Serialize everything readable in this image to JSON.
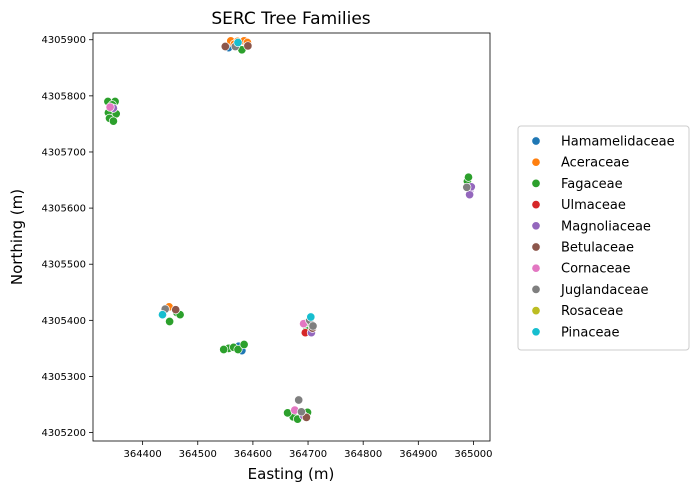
{
  "chart_data": {
    "type": "scatter",
    "title": "SERC Tree Families",
    "xlabel": "Easting (m)",
    "ylabel": "Northing (m)",
    "xlim": [
      364310,
      365030
    ],
    "ylim": [
      4305185,
      4305912
    ],
    "xticks": [
      {
        "value": 364400,
        "label": "364400"
      },
      {
        "value": 364500,
        "label": "364500"
      },
      {
        "value": 364600,
        "label": "364600"
      },
      {
        "value": 364700,
        "label": "364700"
      },
      {
        "value": 364800,
        "label": "364800"
      },
      {
        "value": 364900,
        "label": "364900"
      },
      {
        "value": 365000,
        "label": "365000"
      }
    ],
    "yticks": [
      {
        "value": 4305200,
        "label": "4305200"
      },
      {
        "value": 4305300,
        "label": "4305300"
      },
      {
        "value": 4305400,
        "label": "4305400"
      },
      {
        "value": 4305500,
        "label": "4305500"
      },
      {
        "value": 4305600,
        "label": "4305600"
      },
      {
        "value": 4305700,
        "label": "4305700"
      },
      {
        "value": 4305800,
        "label": "4305800"
      },
      {
        "value": 4305900,
        "label": "4305900"
      }
    ],
    "grid": false,
    "legend_position": "right",
    "series": [
      {
        "name": "Hamamelidaceae",
        "color": "#1f77b4",
        "points": [
          [
            364556,
            4305886
          ],
          [
            364580,
            4305346
          ],
          [
            364574,
            4305354
          ]
        ]
      },
      {
        "name": "Aceraceae",
        "color": "#ff7f0e",
        "points": [
          [
            364560,
            4305898
          ],
          [
            364572,
            4305897
          ],
          [
            364584,
            4305898
          ],
          [
            364566,
            4305892
          ],
          [
            364590,
            4305895
          ],
          [
            364448,
            4305424
          ]
        ]
      },
      {
        "name": "Fagaceae",
        "color": "#2ca02c",
        "points": [
          [
            364580,
            4305882
          ],
          [
            364337,
            4305790
          ],
          [
            364350,
            4305790
          ],
          [
            364345,
            4305784
          ],
          [
            364338,
            4305770
          ],
          [
            364352,
            4305768
          ],
          [
            364340,
            4305760
          ],
          [
            364347,
            4305755
          ],
          [
            364449,
            4305398
          ],
          [
            364462,
            4305414
          ],
          [
            364468,
            4305410
          ],
          [
            364556,
            4305350
          ],
          [
            364565,
            4305352
          ],
          [
            364573,
            4305348
          ],
          [
            364584,
            4305357
          ],
          [
            364547,
            4305348
          ],
          [
            364989,
            4305648
          ],
          [
            364991,
            4305655
          ],
          [
            364698,
            4305385
          ],
          [
            364695,
            4305395
          ],
          [
            364673,
            4305228
          ],
          [
            364663,
            4305235
          ],
          [
            364699,
            4305236
          ],
          [
            364681,
            4305224
          ]
        ]
      },
      {
        "name": "Ulmaceae",
        "color": "#d62728",
        "points": [
          [
            364695,
            4305378
          ]
        ]
      },
      {
        "name": "Magnoliaceae",
        "color": "#9467bd",
        "points": [
          [
            364347,
            4305778
          ],
          [
            364994,
            4305633
          ],
          [
            364993,
            4305624
          ],
          [
            364996,
            4305638
          ],
          [
            364692,
            4305230
          ],
          [
            364706,
            4305378
          ]
        ]
      },
      {
        "name": "Betulaceae",
        "color": "#8c564b",
        "points": [
          [
            364591,
            4305889
          ],
          [
            364550,
            4305888
          ],
          [
            364460,
            4305419
          ],
          [
            364708,
            4305386
          ],
          [
            364697,
            4305227
          ]
        ]
      },
      {
        "name": "Cornaceae",
        "color": "#e377c2",
        "points": [
          [
            364341,
            4305780
          ],
          [
            364676,
            4305240
          ],
          [
            364692,
            4305394
          ]
        ]
      },
      {
        "name": "Juglandaceae",
        "color": "#7f7f7f",
        "points": [
          [
            364568,
            4305888
          ],
          [
            364441,
            4305420
          ],
          [
            364683,
            4305258
          ],
          [
            364688,
            4305237
          ],
          [
            364703,
            4305400
          ],
          [
            364709,
            4305390
          ],
          [
            364988,
            4305637
          ]
        ]
      },
      {
        "name": "Rosaceae",
        "color": "#bcbd22",
        "points": []
      },
      {
        "name": "Pinaceae",
        "color": "#17becf",
        "points": [
          [
            364436,
            4305410
          ],
          [
            364573,
            4305895
          ],
          [
            364705,
            4305406
          ]
        ]
      }
    ]
  }
}
